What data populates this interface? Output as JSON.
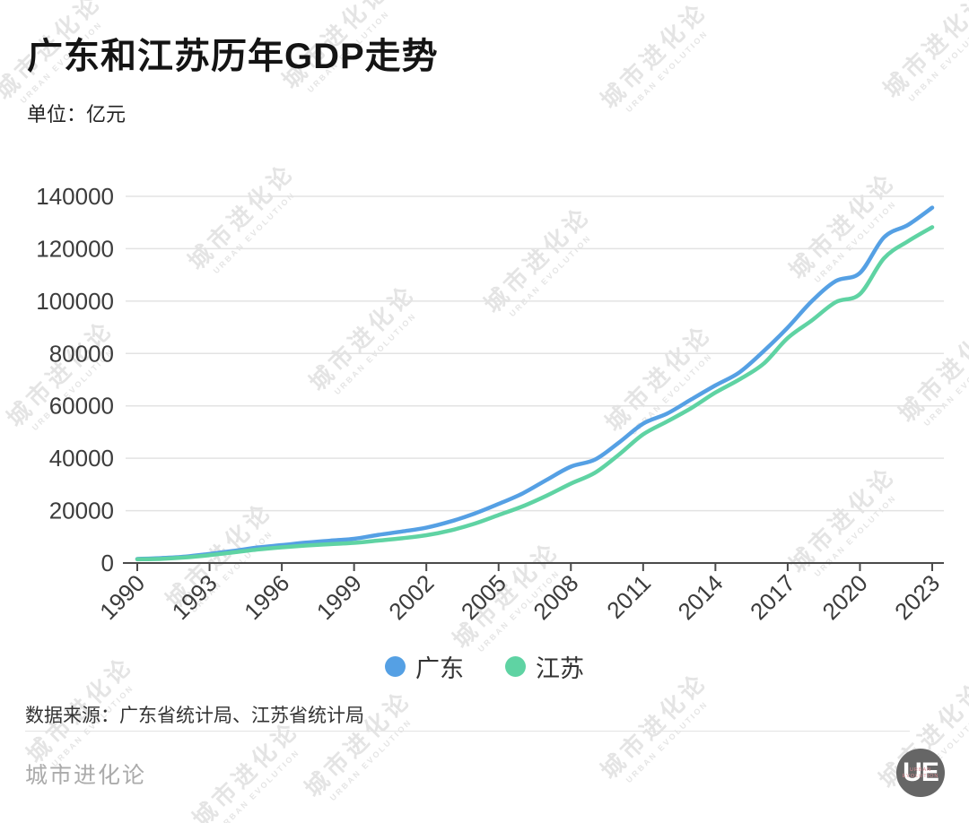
{
  "page": {
    "title": "广东和江苏历年GDP走势",
    "subtitle": "单位：亿元",
    "source": "数据来源：广东省统计局、江苏省统计局",
    "footer_brand": "城市进化论"
  },
  "watermark": {
    "line1": "城市进化论",
    "line2": "URBAN EVOLUTION"
  },
  "logo": {
    "text": "UE",
    "subtext": "URBAN\nEVOLUTION"
  },
  "colors": {
    "guangdong_line": "#55a0e4",
    "jiangsu_line": "#5fd3a3",
    "grid": "#e3e3e3",
    "axis": "#4a4a4a",
    "tick_label": "#3c3c3c"
  },
  "chart_data": {
    "type": "line",
    "title": "广东和江苏历年GDP走势",
    "unit": "亿元",
    "xlabel": "",
    "ylabel": "",
    "ylim": [
      0,
      140000
    ],
    "ytick_interval": 20000,
    "xtick_years": [
      1990,
      1993,
      1996,
      1999,
      2002,
      2005,
      2008,
      2011,
      2014,
      2017,
      2020,
      2023
    ],
    "grid": true,
    "legend_position": "bottom",
    "x": [
      1990,
      1991,
      1992,
      1993,
      1994,
      1995,
      1996,
      1997,
      1998,
      1999,
      2000,
      2001,
      2002,
      2003,
      2004,
      2005,
      2006,
      2007,
      2008,
      2009,
      2010,
      2011,
      2012,
      2013,
      2014,
      2015,
      2016,
      2017,
      2018,
      2019,
      2020,
      2021,
      2022,
      2023
    ],
    "series": [
      {
        "name": "广东",
        "color": "#55a0e4",
        "values": [
          1559,
          1893,
          2448,
          3469,
          4619,
          5933,
          6835,
          7775,
          8531,
          9251,
          10741,
          12039,
          13502,
          15845,
          18865,
          22557,
          26588,
          31777,
          36797,
          39483,
          46013,
          53210,
          57068,
          62475,
          67810,
          72813,
          80855,
          89879,
          99945,
          107671,
          110761,
          124370,
          129119,
          135673
        ]
      },
      {
        "name": "江苏",
        "color": "#5fd3a3",
        "values": [
          1417,
          1601,
          2136,
          2998,
          4057,
          5155,
          6004,
          6680,
          7200,
          7698,
          8554,
          9457,
          10607,
          12443,
          15004,
          18306,
          21645,
          25741,
          30313,
          34457,
          41425,
          49110,
          54058,
          59162,
          65088,
          70116,
          76086,
          85901,
          92595,
          99632,
          102719,
          116364,
          122876,
          128222
        ]
      }
    ]
  }
}
